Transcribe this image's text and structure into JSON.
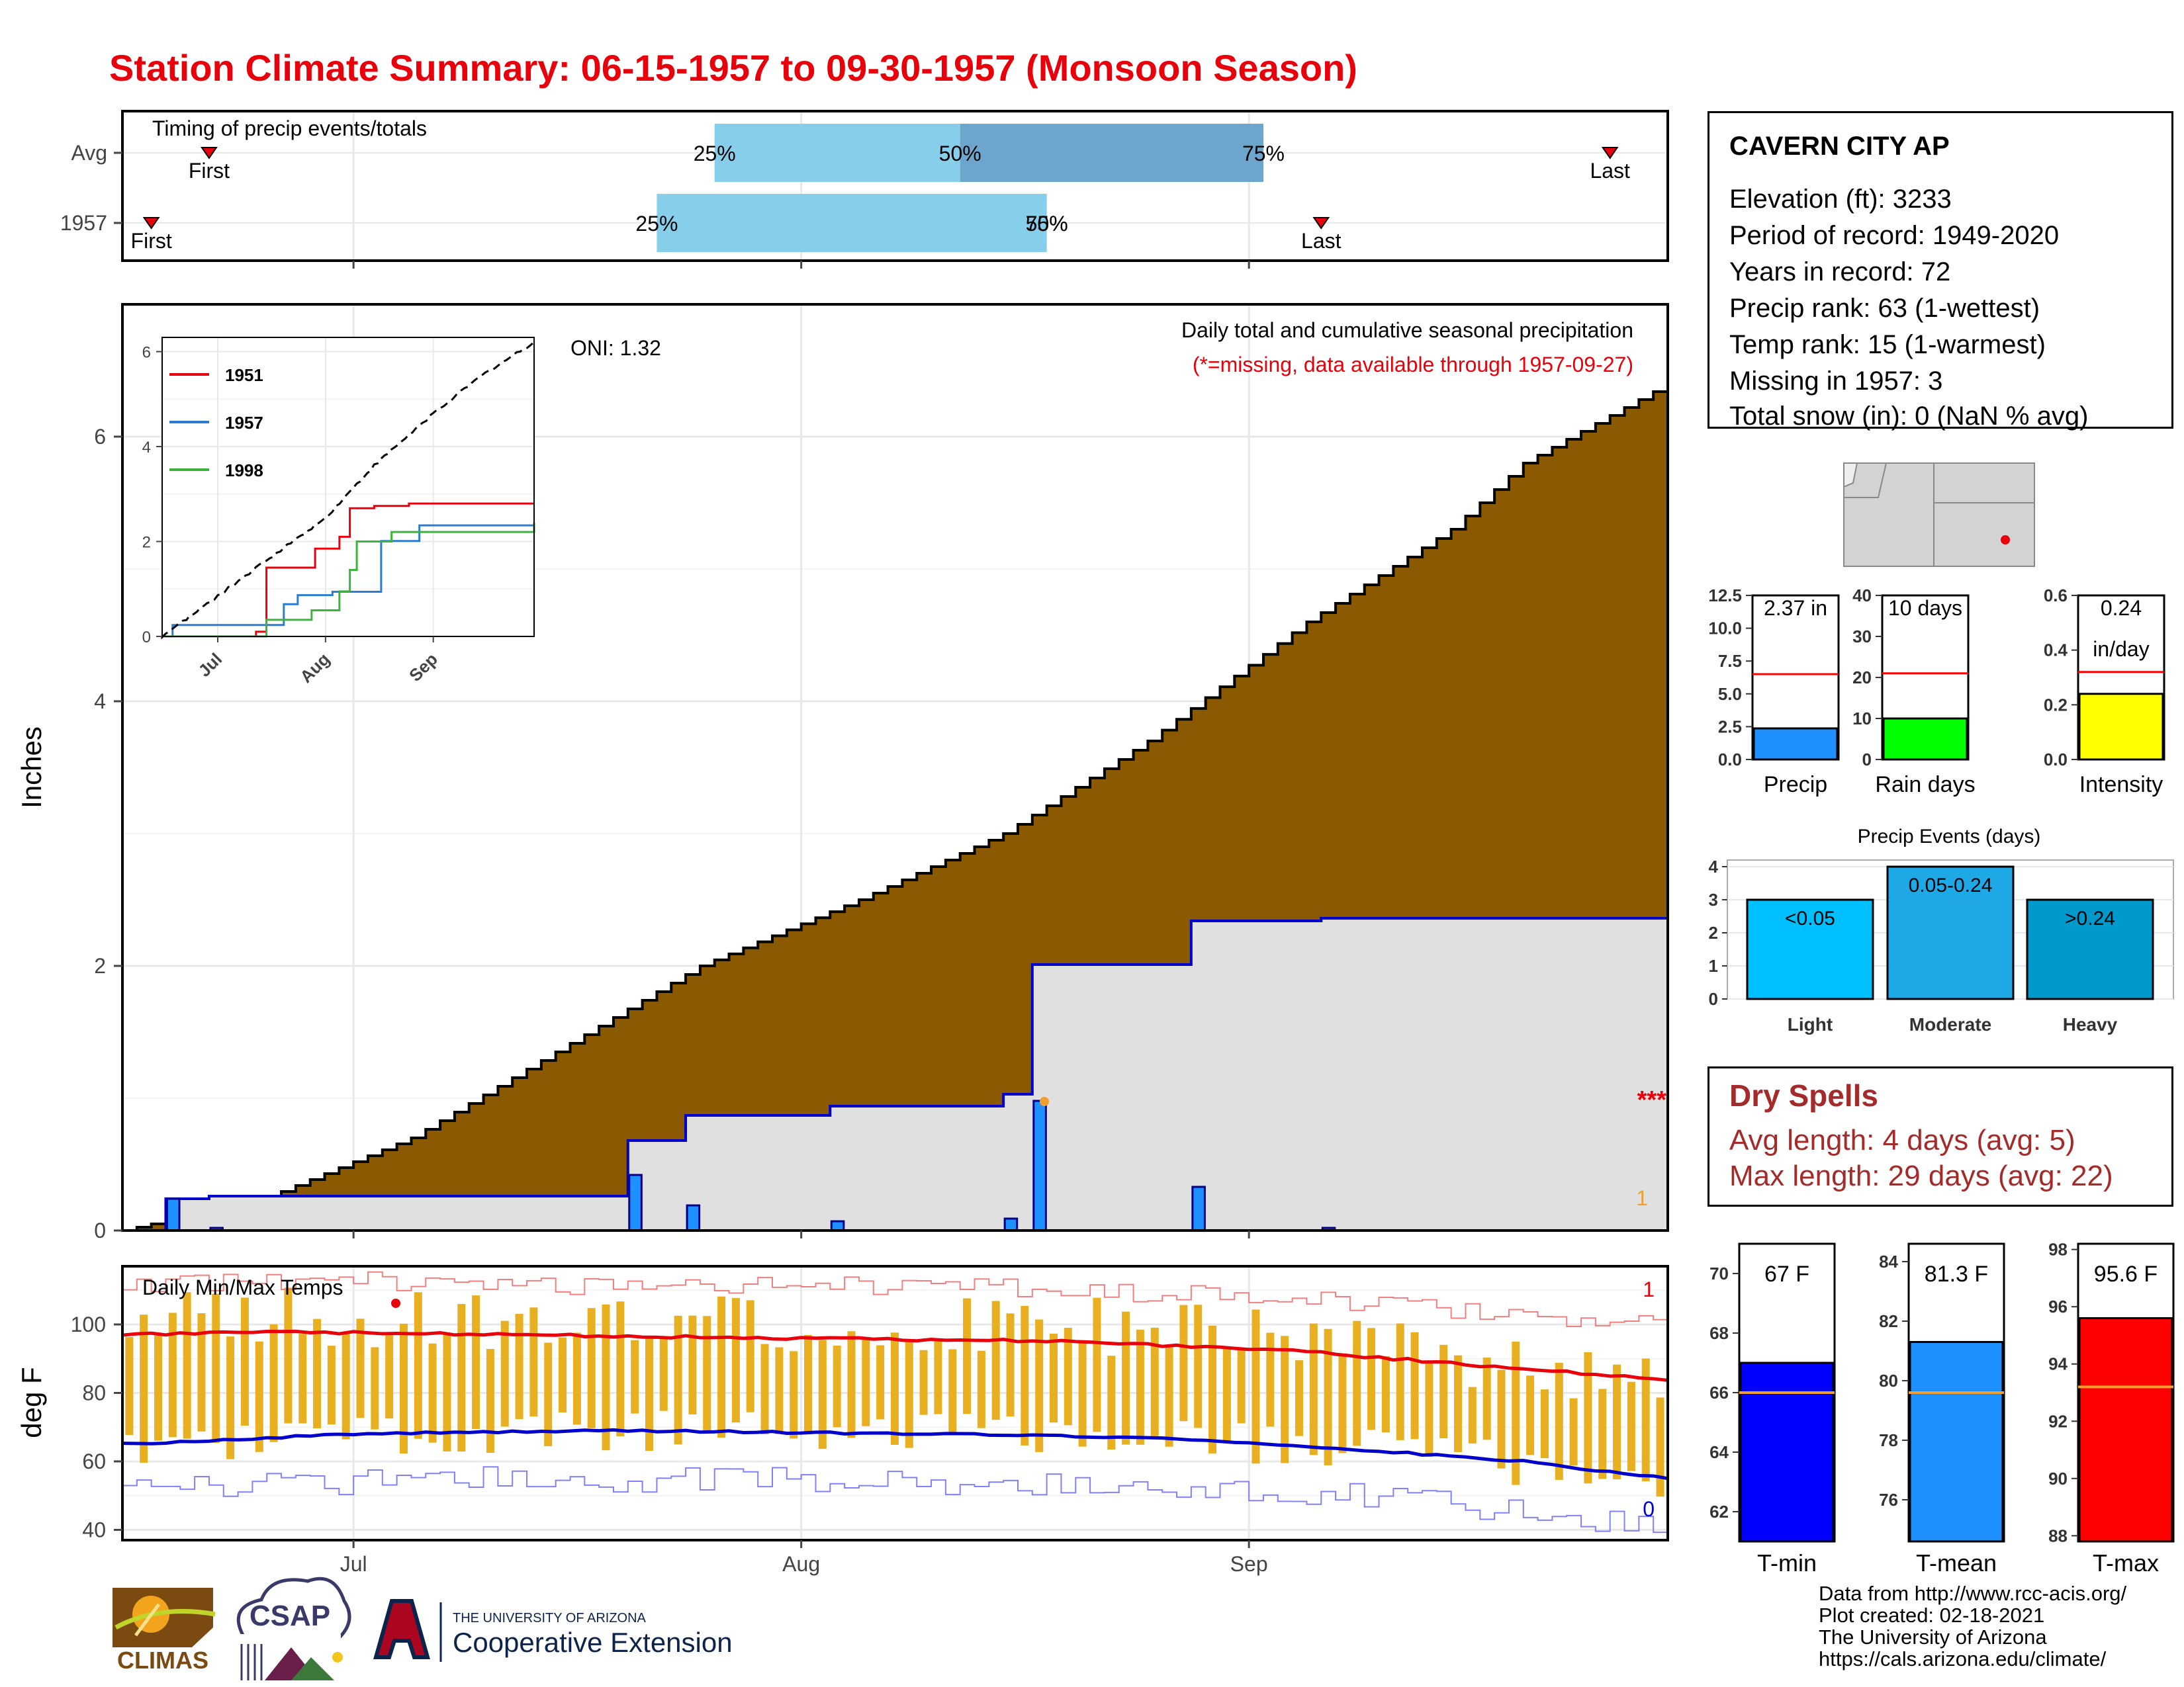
{
  "title": "Station Climate Summary: 06-15-1957 to 09-30-1957 (Monsoon Season)",
  "timing_panel": {
    "label": "Timing of precip events/totals",
    "rows": [
      {
        "name": "Avg",
        "first_label": "First",
        "last_label": "Last",
        "first_date": "1957-06-21",
        "last_date": "1957-09-26",
        "q25_label": "25%",
        "q50_label": "50%",
        "q75_label": "75%",
        "q25_date": "1957-07-26",
        "q50_date": "1957-08-12",
        "q75_date": "1957-09-02"
      },
      {
        "name": "1957",
        "first_label": "First",
        "last_label": "Last",
        "first_date": "1957-06-17",
        "last_date": "1957-09-06",
        "q25_label": "25%",
        "q50_label": "50%",
        "q75_label": "75%",
        "q25_date": "1957-07-22",
        "q50_date": "1957-08-18",
        "q75_date": "1957-08-18"
      }
    ],
    "colors": {
      "light": "#87ceeb",
      "dark": "#6ca6cd",
      "marker": "#e8000b"
    }
  },
  "precip_panel": {
    "ylabel": "Inches",
    "oni_label": "ONI: 1.32",
    "title_line1": "Daily total and cumulative seasonal precipitation",
    "title_line2": "(*=missing, data available through 1957-09-27)",
    "missing_marks": "***",
    "count_label": "1",
    "colors": {
      "avg_fill": "#8b5a00",
      "obs_fill": "#e0e0e0",
      "obs_line": "#0000cd",
      "bar": "#1e90ff",
      "ahead": "#008b00"
    }
  },
  "inset": {
    "legend": [
      "1951",
      "1957",
      "1998"
    ],
    "legend_colors": [
      "#e8000b",
      "#2b7cd3",
      "#3cb43c"
    ],
    "y_ticks": [
      "0",
      "2",
      "4",
      "6"
    ],
    "x_ticks": [
      "Jul",
      "Aug",
      "Sep"
    ]
  },
  "station": {
    "name": "CAVERN CITY AP",
    "lines": [
      "Elevation (ft): 3233",
      "Period of record: 1949-2020",
      "Years in record: 72",
      "Precip rank: 63 (1-wettest)",
      "Temp rank: 15 (1-warmest)",
      "Missing in 1957: 3",
      "Total snow (in): 0 (NaN % avg)"
    ]
  },
  "mini_bars": [
    {
      "name": "Precip",
      "label": "2.37 in",
      "ticks": [
        "0.0",
        "2.5",
        "5.0",
        "7.5",
        "10.0",
        "12.5"
      ],
      "ymax": 12.5,
      "value": 2.37,
      "avg": 6.5,
      "color": "#1e90ff"
    },
    {
      "name": "Rain days",
      "label": "10 days",
      "ticks": [
        "0",
        "10",
        "20",
        "30",
        "40"
      ],
      "ymax": 40,
      "value": 10,
      "avg": 21,
      "color": "#00ff00"
    },
    {
      "name": "Intensity",
      "label": "0.24",
      "label2": "in/day",
      "ticks": [
        "0.0",
        "0.2",
        "0.4",
        "0.6"
      ],
      "ymax": 0.6,
      "value": 0.24,
      "avg": 0.32,
      "color": "#ffff00"
    }
  ],
  "events": {
    "title": "Precip Events (days)",
    "ticks": [
      "0",
      "1",
      "2",
      "3",
      "4"
    ],
    "categories": [
      "Light",
      "Moderate",
      "Heavy"
    ],
    "labels": [
      "<0.05",
      "0.05-0.24",
      ">0.24"
    ],
    "values": [
      3,
      4,
      3
    ],
    "colors": [
      "#00bfff",
      "#1ea8e6",
      "#0099cc"
    ]
  },
  "dry_spells": {
    "title": "Dry Spells",
    "avg_line": "Avg length: 4 days (avg: 5)",
    "max_line": "Max length: 29 days (avg: 22)"
  },
  "temp_panel": {
    "ylabel": "deg F",
    "label": "Daily Min/Max Temps",
    "y_ticks": [
      "40",
      "60",
      "80",
      "100"
    ],
    "x_ticks": [
      "Jul",
      "Aug",
      "Sep"
    ],
    "max_count": "1",
    "min_count": "0",
    "colors": {
      "bar": "#e8b020",
      "max_avg": "#e8000b",
      "min_avg": "#0000cd",
      "max_rec": "#f08080",
      "min_rec": "#8080ff"
    }
  },
  "temp_bars": [
    {
      "name": "T-min",
      "label": "67 F",
      "ticks": [
        "62",
        "64",
        "66",
        "68",
        "70"
      ],
      "ymin": 61,
      "ymax": 71,
      "value": 67,
      "avg": 66,
      "color": "#0000ff"
    },
    {
      "name": "T-mean",
      "label": "81.3 F",
      "ticks": [
        "76",
        "78",
        "80",
        "82",
        "84"
      ],
      "ymin": 74.6,
      "ymax": 84.6,
      "value": 81.3,
      "avg": 79.6,
      "color": "#1e90ff"
    },
    {
      "name": "T-max",
      "label": "95.6 F",
      "ticks": [
        "88",
        "90",
        "92",
        "94",
        "96",
        "98"
      ],
      "ymin": 87.8,
      "ymax": 98.2,
      "value": 95.6,
      "avg": 93.2,
      "color": "#ff0000"
    }
  ],
  "footer": {
    "lines": [
      "Data from http://www.rcc-acis.org/",
      "Plot created: 02-18-2021",
      "The University of Arizona",
      "https://cals.arizona.edu/climate/"
    ],
    "logos": {
      "climas": "CLIMAS",
      "csap": "CSAP",
      "ua_small": "THE UNIVERSITY OF ARIZONA",
      "ua_big": "Cooperative Extension"
    }
  },
  "chart_data": [
    {
      "type": "line",
      "title": "Daily total and cumulative seasonal precipitation",
      "ylabel": "Inches",
      "x_ticks": [
        "Jul",
        "Aug",
        "Sep"
      ],
      "y_ticks": [
        "0",
        "2",
        "4",
        "6"
      ],
      "ylim": [
        0,
        7
      ],
      "xlim": [
        "1957-06-15",
        "1957-09-30"
      ],
      "daily_precip": [
        {
          "date": "1957-06-18",
          "value": 0.24
        },
        {
          "date": "1957-06-21",
          "value": 0.02
        },
        {
          "date": "1957-07-20",
          "value": 0.42
        },
        {
          "date": "1957-07-24",
          "value": 0.19
        },
        {
          "date": "1957-08-03",
          "value": 0.07
        },
        {
          "date": "1957-08-15",
          "value": 0.09
        },
        {
          "date": "1957-08-17",
          "value": 0.98
        },
        {
          "date": "1957-08-28",
          "value": 0.33
        },
        {
          "date": "1957-09-06",
          "value": 0.02
        }
      ],
      "cumulative_1957": [
        {
          "date": "1957-06-15",
          "value": 0.0
        },
        {
          "date": "1957-06-18",
          "value": 0.24
        },
        {
          "date": "1957-06-21",
          "value": 0.26
        },
        {
          "date": "1957-07-20",
          "value": 0.68
        },
        {
          "date": "1957-07-24",
          "value": 0.87
        },
        {
          "date": "1957-08-03",
          "value": 0.94
        },
        {
          "date": "1957-08-15",
          "value": 1.03
        },
        {
          "date": "1957-08-17",
          "value": 2.01
        },
        {
          "date": "1957-08-28",
          "value": 2.34
        },
        {
          "date": "1957-09-06",
          "value": 2.36
        },
        {
          "date": "1957-09-30",
          "value": 2.37
        }
      ],
      "cumulative_avg": [
        {
          "date": "1957-06-15",
          "value": 0.0
        },
        {
          "date": "1957-06-25",
          "value": 0.25
        },
        {
          "date": "1957-07-05",
          "value": 0.7
        },
        {
          "date": "1957-07-15",
          "value": 1.35
        },
        {
          "date": "1957-07-25",
          "value": 2.0
        },
        {
          "date": "1957-08-05",
          "value": 2.5
        },
        {
          "date": "1957-08-15",
          "value": 3.0
        },
        {
          "date": "1957-08-25",
          "value": 3.7
        },
        {
          "date": "1957-09-05",
          "value": 4.6
        },
        {
          "date": "1957-09-15",
          "value": 5.3
        },
        {
          "date": "1957-09-20",
          "value": 5.8
        },
        {
          "date": "1957-09-30",
          "value": 6.4
        }
      ],
      "missing_days": 3
    },
    {
      "type": "line",
      "title": "",
      "legend": [
        "1951",
        "1957",
        "1998"
      ],
      "legend_position": "top-left",
      "x_ticks": [
        "Jul",
        "Aug",
        "Sep"
      ],
      "y_ticks": [
        "0",
        "2",
        "4",
        "6"
      ],
      "ylim": [
        0,
        6.3
      ],
      "series": [
        {
          "name": "1951",
          "points": [
            [
              "1957-06-15",
              0
            ],
            [
              "1957-07-12",
              0.1
            ],
            [
              "1957-07-15",
              1.45
            ],
            [
              "1957-07-29",
              1.85
            ],
            [
              "1957-08-05",
              2.1
            ],
            [
              "1957-08-08",
              2.7
            ],
            [
              "1957-08-15",
              2.75
            ],
            [
              "1957-08-25",
              2.8
            ],
            [
              "1957-09-30",
              2.8
            ]
          ]
        },
        {
          "name": "1957",
          "points": [
            [
              "1957-06-15",
              0
            ],
            [
              "1957-06-18",
              0.24
            ],
            [
              "1957-07-20",
              0.68
            ],
            [
              "1957-07-24",
              0.87
            ],
            [
              "1957-08-03",
              0.94
            ],
            [
              "1957-08-17",
              2.01
            ],
            [
              "1957-08-28",
              2.34
            ],
            [
              "1957-09-30",
              2.37
            ]
          ]
        },
        {
          "name": "1998",
          "points": [
            [
              "1957-06-15",
              0
            ],
            [
              "1957-07-15",
              0.35
            ],
            [
              "1957-07-28",
              0.55
            ],
            [
              "1957-08-05",
              0.95
            ],
            [
              "1957-08-08",
              1.4
            ],
            [
              "1957-08-10",
              2.0
            ],
            [
              "1957-08-20",
              2.2
            ],
            [
              "1957-09-30",
              2.4
            ]
          ]
        },
        {
          "name": "",
          "points": [
            [
              "1957-06-15",
              0
            ],
            [
              "1957-07-01",
              0.85
            ],
            [
              "1957-07-15",
              1.6
            ],
            [
              "1957-08-01",
              2.5
            ],
            [
              "1957-08-15",
              3.6
            ],
            [
              "1957-09-01",
              4.7
            ],
            [
              "1957-09-15",
              5.5
            ],
            [
              "1957-09-30",
              6.2
            ]
          ]
        }
      ]
    },
    {
      "type": "bar",
      "title": "Daily Min/Max Temps",
      "ylabel": "deg F",
      "ylim": [
        37,
        117
      ],
      "y_ticks": [
        "40",
        "60",
        "80",
        "100"
      ],
      "x_ticks": [
        "Jul",
        "Aug",
        "Sep"
      ],
      "avg_max": [
        [
          "1957-06-15",
          97
        ],
        [
          "1957-06-25",
          98
        ],
        [
          "1957-07-10",
          97
        ],
        [
          "1957-08-01",
          96
        ],
        [
          "1957-08-20",
          95
        ],
        [
          "1957-09-05",
          92
        ],
        [
          "1957-09-20",
          87
        ],
        [
          "1957-09-30",
          84
        ]
      ],
      "avg_min": [
        [
          "1957-06-15",
          65
        ],
        [
          "1957-07-01",
          68
        ],
        [
          "1957-07-20",
          69
        ],
        [
          "1957-08-10",
          68
        ],
        [
          "1957-08-25",
          67
        ],
        [
          "1957-09-10",
          63
        ],
        [
          "1957-09-20",
          60
        ],
        [
          "1957-09-30",
          55
        ]
      ],
      "record_count_max": 1,
      "record_count_min": 0
    }
  ]
}
